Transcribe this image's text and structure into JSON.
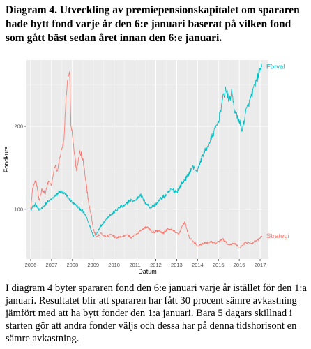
{
  "heading": "Diagram 4. Utveckling av premiepensionskapitalet om spararen hade bytt fond varje år den 6:e januari baserat på vilken fond som gått bäst sedan året innan den 6:e januari.",
  "caption": "I diagram 4 byter spararen fond den 6:e januari varje år istället för den 1:a januari. Resultatet blir att spararen har fått 30 procent sämre avkastning jämfört med att ha bytt fonder den 1:a januari. Bara 5 dagars skillnad i starten gör att andra fonder väljs och dessa har på denna tidshorisont en sämre avkastning.",
  "chart_data": {
    "type": "line",
    "xlabel": "Datum",
    "ylabel": "Fondkurs",
    "xlim": [
      2005.8,
      2017.4
    ],
    "ylim": [
      40,
      280
    ],
    "xticks": [
      "2006",
      "2007",
      "2008",
      "2009",
      "2010",
      "2011",
      "2012",
      "2013",
      "2014",
      "2015",
      "2016",
      "2017"
    ],
    "yticks": [
      "100",
      "200"
    ],
    "grid": true,
    "series": [
      {
        "name": "Förval",
        "color": "#00BFC4",
        "label_position": "end-top",
        "x": [
          2006.0,
          2006.25,
          2006.4,
          2006.6,
          2006.8,
          2007.0,
          2007.2,
          2007.4,
          2007.6,
          2007.8,
          2008.0,
          2008.2,
          2008.4,
          2008.6,
          2008.8,
          2009.0,
          2009.15,
          2009.3,
          2009.5,
          2009.75,
          2010.0,
          2010.25,
          2010.5,
          2010.75,
          2011.0,
          2011.25,
          2011.5,
          2011.75,
          2012.0,
          2012.25,
          2012.5,
          2012.75,
          2013.0,
          2013.25,
          2013.5,
          2013.75,
          2014.0,
          2014.25,
          2014.5,
          2014.75,
          2015.0,
          2015.2,
          2015.35,
          2015.5,
          2015.65,
          2015.8,
          2016.0,
          2016.15,
          2016.3,
          2016.5,
          2016.75,
          2017.0,
          2017.1
        ],
        "values": [
          100,
          106,
          98,
          104,
          108,
          112,
          116,
          122,
          119,
          114,
          108,
          104,
          100,
          94,
          82,
          68,
          70,
          78,
          84,
          92,
          96,
          102,
          104,
          111,
          110,
          118,
          108,
          102,
          106,
          113,
          117,
          124,
          121,
          131,
          139,
          151,
          146,
          166,
          176,
          191,
          206,
          232,
          246,
          231,
          241,
          216,
          206,
          196,
          216,
          231,
          249,
          269,
          272
        ]
      },
      {
        "name": "Strategi",
        "color": "#F8766D",
        "label_position": "end-bottom",
        "x": [
          2006.0,
          2006.1,
          2006.25,
          2006.4,
          2006.55,
          2006.7,
          2006.85,
          2007.0,
          2007.15,
          2007.3,
          2007.45,
          2007.6,
          2007.7,
          2007.8,
          2007.87,
          2007.93,
          2008.0,
          2008.1,
          2008.2,
          2008.35,
          2008.5,
          2008.65,
          2008.8,
          2008.9,
          2009.0,
          2009.15,
          2009.35,
          2009.6,
          2009.85,
          2010.1,
          2010.35,
          2010.6,
          2010.85,
          2011.1,
          2011.35,
          2011.6,
          2011.85,
          2012.1,
          2012.35,
          2012.6,
          2012.85,
          2013.1,
          2013.3,
          2013.4,
          2013.6,
          2013.8,
          2014.0,
          2014.3,
          2014.6,
          2014.9,
          2015.2,
          2015.5,
          2015.8,
          2016.0,
          2016.3,
          2016.6,
          2016.9,
          2017.1
        ],
        "values": [
          100,
          126,
          134,
          111,
          124,
          118,
          134,
          129,
          151,
          148,
          168,
          184,
          236,
          261,
          266,
          201,
          189,
          166,
          146,
          171,
          161,
          133,
          104,
          94,
          76,
          67,
          71,
          67,
          69,
          66,
          67,
          69,
          66,
          71,
          76,
          79,
          72,
          74,
          71,
          76,
          74,
          69,
          81,
          84,
          66,
          61,
          56,
          59,
          61,
          59,
          64,
          57,
          59,
          53,
          60,
          59,
          63,
          68
        ]
      }
    ]
  }
}
